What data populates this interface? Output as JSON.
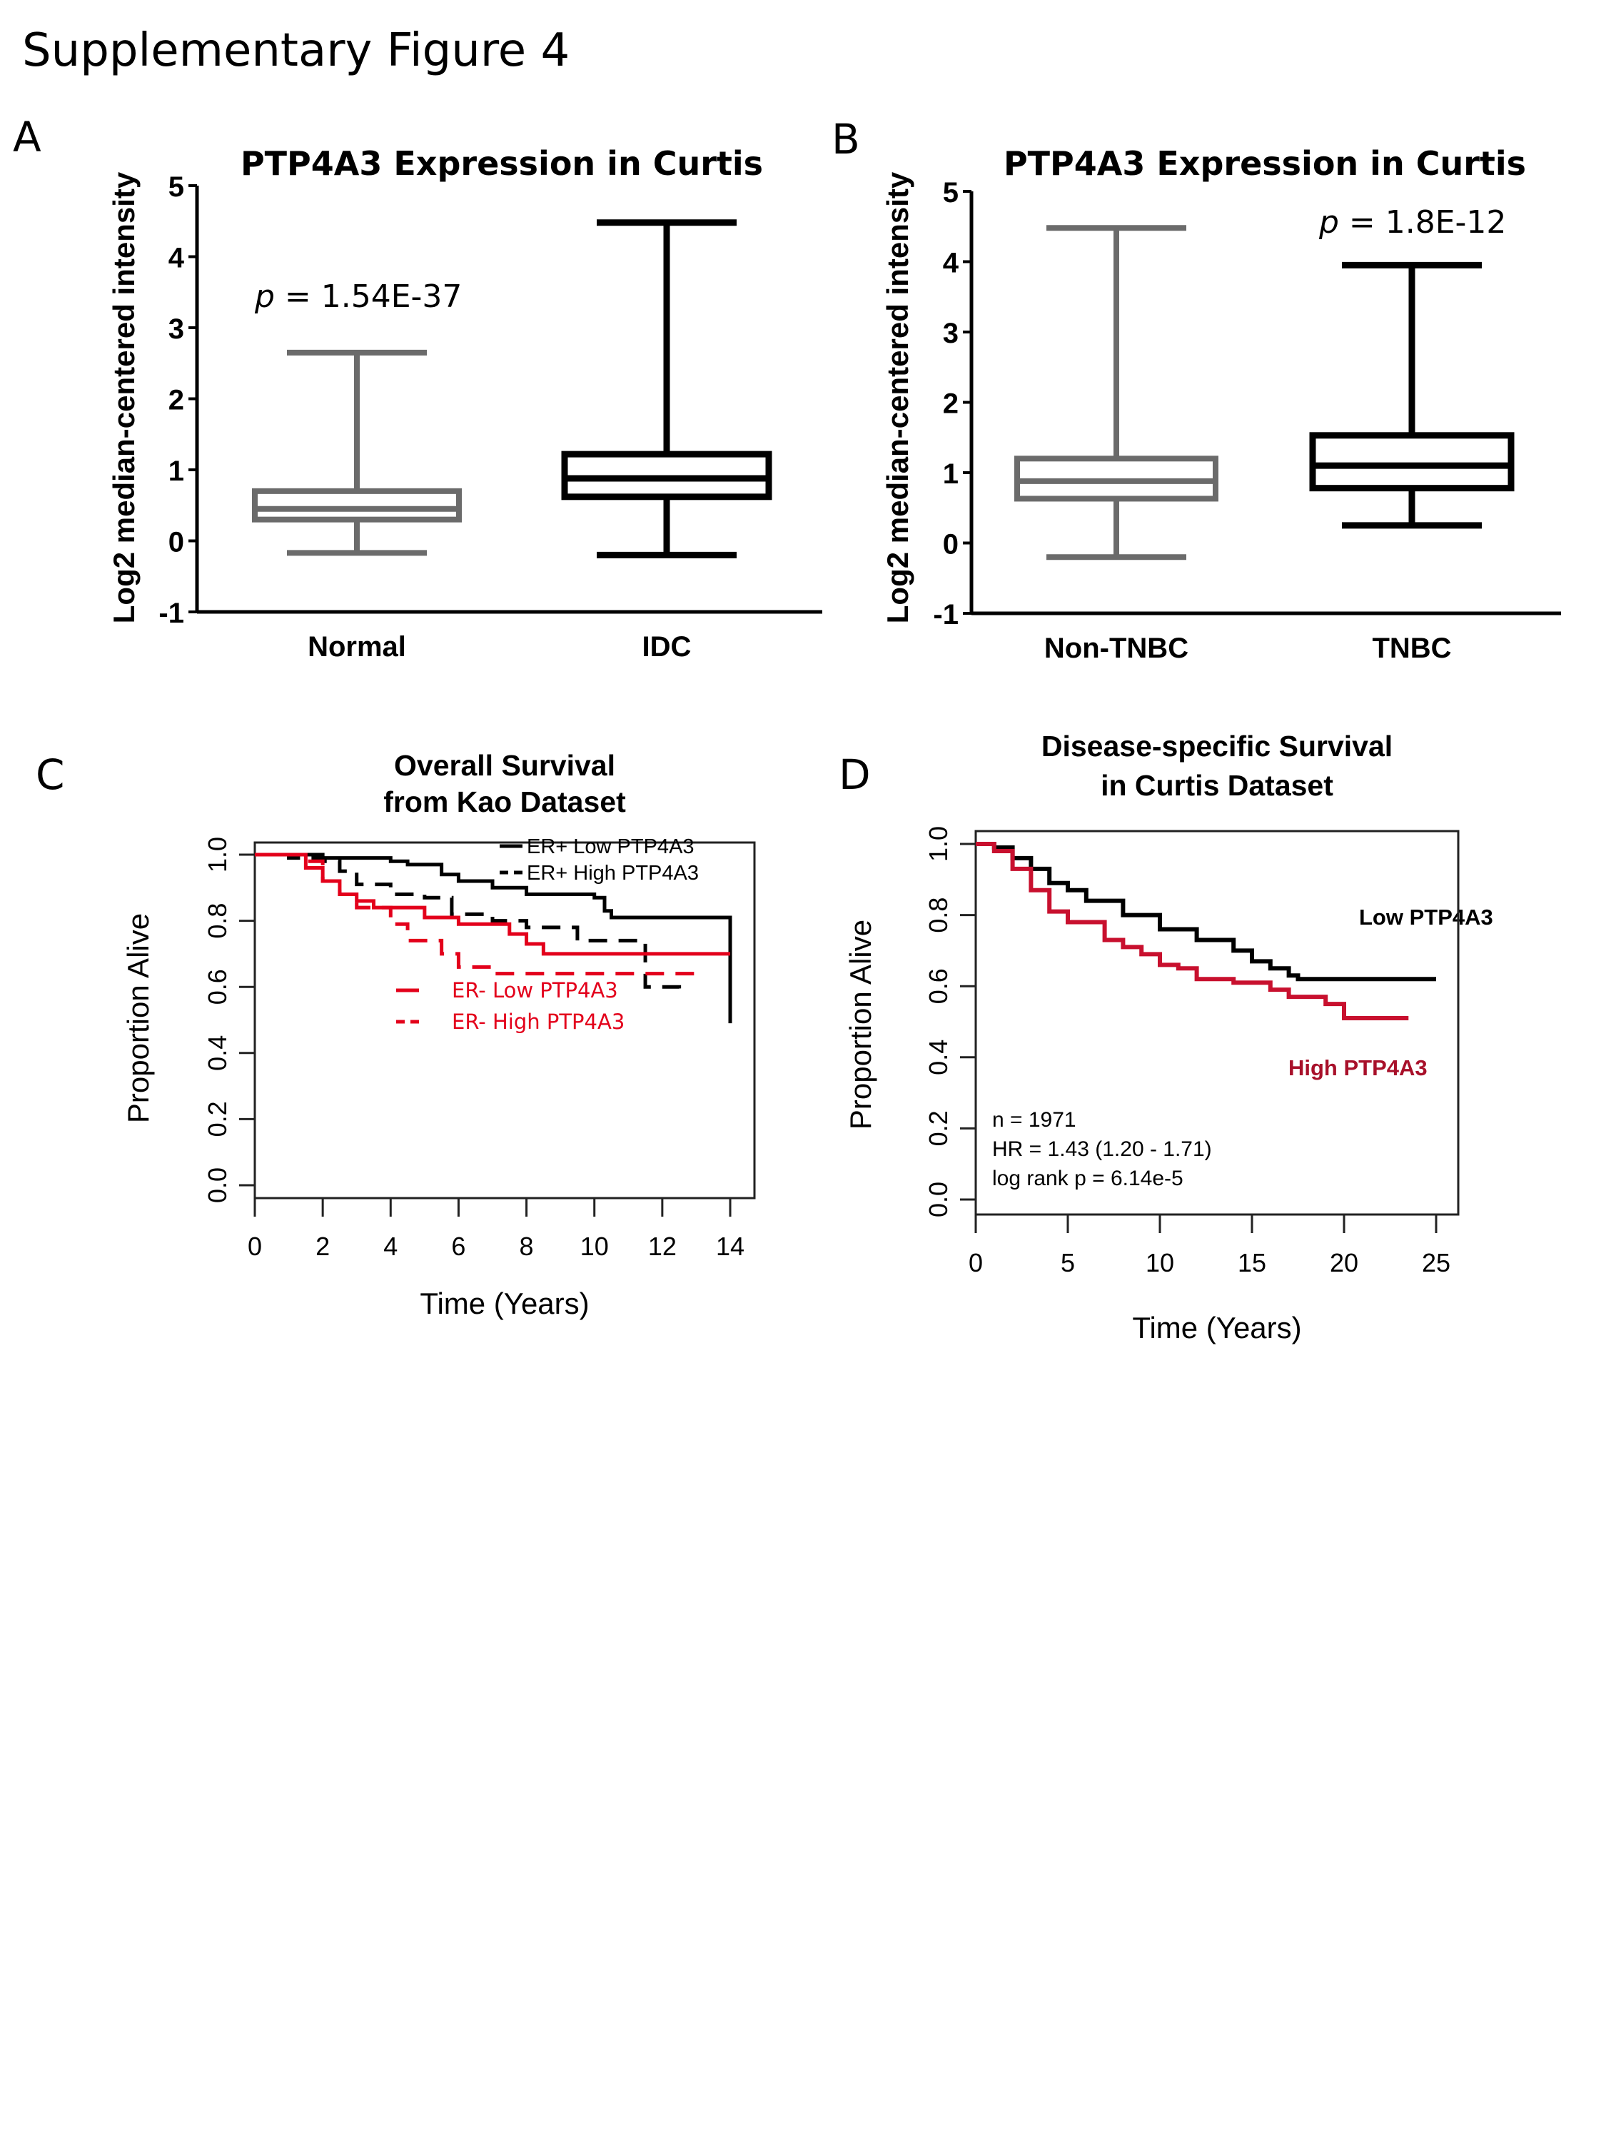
{
  "figure_title": "Supplementary Figure 4",
  "panel_labels": [
    "A",
    "B",
    "C",
    "D"
  ],
  "chart_data": [
    {
      "type": "box",
      "panel": "A",
      "title": "PTP4A3 Expression in Curtis",
      "ylabel": "Log2 median-centered intensity",
      "xlabel": "",
      "ylim": [
        -1,
        5
      ],
      "yticks": [
        "5",
        "4",
        "3",
        "2",
        "1",
        "0",
        "-1"
      ],
      "annotation": {
        "p_symbol": "p",
        "text": " = 1.54E-37"
      },
      "categories": [
        "Normal",
        "IDC"
      ],
      "colors": [
        "#6b6b6b",
        "#000000"
      ],
      "boxes": [
        {
          "min": -0.17,
          "q1": 0.3,
          "median": 0.45,
          "q3": 0.7,
          "max": 2.65
        },
        {
          "min": -0.2,
          "q1": 0.62,
          "median": 0.88,
          "q3": 1.22,
          "max": 4.48
        }
      ]
    },
    {
      "type": "box",
      "panel": "B",
      "title": "PTP4A3 Expression in Curtis",
      "ylabel": "Log2 median-centered intensity",
      "xlabel": "",
      "ylim": [
        -1,
        5
      ],
      "yticks": [
        "5",
        "4",
        "3",
        "2",
        "1",
        "0",
        "-1"
      ],
      "annotation": {
        "p_symbol": "p",
        "text": " = 1.8E-12"
      },
      "categories": [
        "Non-TNBC",
        "TNBC"
      ],
      "colors": [
        "#6b6b6b",
        "#000000"
      ],
      "boxes": [
        {
          "min": -0.2,
          "q1": 0.63,
          "median": 0.88,
          "q3": 1.2,
          "max": 4.48
        },
        {
          "min": 0.25,
          "q1": 0.78,
          "median": 1.1,
          "q3": 1.53,
          "max": 3.95
        }
      ]
    },
    {
      "type": "line",
      "subtype": "kaplan-meier",
      "panel": "C",
      "title_lines": [
        "Overall Survival",
        "from Kao Dataset"
      ],
      "xlabel": "Time (Years)",
      "ylabel": "Proportion Alive",
      "xlim": [
        0,
        14
      ],
      "ylim": [
        0,
        1
      ],
      "xticks": [
        "0",
        "2",
        "4",
        "6",
        "8",
        "10",
        "12",
        "14"
      ],
      "yticks": [
        "0.0",
        "0.2",
        "0.4",
        "0.6",
        "0.8",
        "1.0"
      ],
      "series": [
        {
          "name": "ER+ Low PTP4A3",
          "color": "#000000",
          "dash": false,
          "x": [
            0,
            1.5,
            2,
            4,
            4.5,
            5.5,
            6,
            7,
            8,
            10,
            10.3,
            10.5,
            14,
            14
          ],
          "y": [
            1,
            1,
            0.99,
            0.98,
            0.97,
            0.94,
            0.92,
            0.9,
            0.88,
            0.87,
            0.83,
            0.81,
            0.81,
            0.49
          ]
        },
        {
          "name": "ER+ High PTP4A3",
          "color": "#000000",
          "dash": true,
          "x": [
            0,
            1,
            2,
            2.5,
            3,
            4,
            5,
            5.8,
            7,
            8,
            9,
            9.5,
            11.5,
            11.5,
            12.5
          ],
          "y": [
            1,
            0.99,
            0.98,
            0.95,
            0.91,
            0.88,
            0.87,
            0.82,
            0.8,
            0.78,
            0.78,
            0.74,
            0.74,
            0.6,
            0.59
          ]
        },
        {
          "name": "ER- Low PTP4A3",
          "color": "#e3001b",
          "dash": false,
          "x": [
            0,
            1,
            1.5,
            2,
            2.5,
            3,
            3.5,
            4.5,
            5,
            6,
            7,
            7.5,
            8,
            8.5,
            14
          ],
          "y": [
            1,
            1,
            0.96,
            0.92,
            0.88,
            0.86,
            0.84,
            0.84,
            0.81,
            0.79,
            0.79,
            0.76,
            0.73,
            0.7,
            0.7
          ]
        },
        {
          "name": "ER- High PTP4A3",
          "color": "#e3001b",
          "dash": true,
          "x": [
            0,
            1.5,
            2,
            2.5,
            3,
            4,
            4.5,
            5.5,
            6,
            7,
            13
          ],
          "y": [
            1,
            0.98,
            0.92,
            0.88,
            0.84,
            0.79,
            0.74,
            0.7,
            0.66,
            0.64,
            0.64
          ]
        }
      ],
      "legend_position": "top-right (ER+), center (ER-)"
    },
    {
      "type": "line",
      "subtype": "kaplan-meier",
      "panel": "D",
      "title_lines": [
        "Disease-specific Survival",
        "in Curtis Dataset"
      ],
      "xlabel": "Time (Years)",
      "ylabel": "Proportion Alive",
      "xlim": [
        0,
        25
      ],
      "ylim": [
        0,
        1
      ],
      "xticks": [
        "0",
        "5",
        "10",
        "15",
        "20",
        "25"
      ],
      "yticks": [
        "0.0",
        "0.2",
        "0.4",
        "0.6",
        "0.8",
        "1.0"
      ],
      "series": [
        {
          "name": "Low PTP4A3",
          "color": "#000000",
          "x": [
            0,
            1,
            2,
            3,
            4,
            5,
            6,
            8,
            10,
            12,
            14,
            15,
            16,
            17,
            17.5,
            25
          ],
          "y": [
            1,
            0.99,
            0.96,
            0.93,
            0.89,
            0.87,
            0.84,
            0.8,
            0.76,
            0.73,
            0.7,
            0.67,
            0.65,
            0.63,
            0.62,
            0.62
          ]
        },
        {
          "name": "High PTP4A3",
          "color": "#c8102e",
          "x": [
            0,
            1,
            2,
            3,
            4,
            5,
            7,
            8,
            9,
            10,
            11,
            12,
            14,
            16,
            17,
            19,
            20,
            23.5
          ],
          "y": [
            1,
            0.98,
            0.93,
            0.87,
            0.81,
            0.78,
            0.73,
            0.71,
            0.69,
            0.66,
            0.65,
            0.62,
            0.61,
            0.59,
            0.57,
            0.55,
            0.51,
            0.51
          ]
        }
      ],
      "stats": [
        "n = 1971",
        "HR = 1.43 (1.20 - 1.71)",
        "log rank p = 6.14e-5"
      ]
    }
  ]
}
